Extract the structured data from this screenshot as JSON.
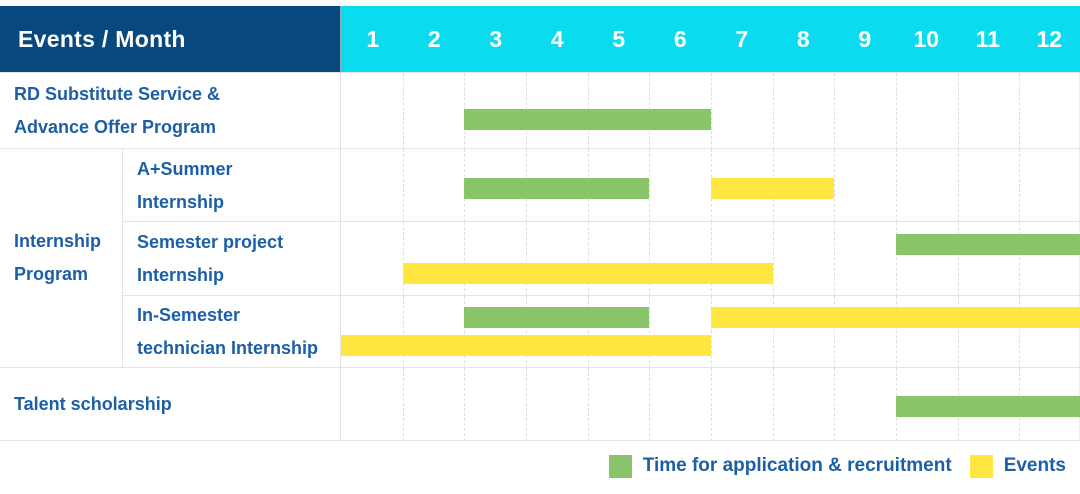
{
  "colors": {
    "navy": "#07497E",
    "cyan": "#0BDBEE",
    "green": "#8AC56B",
    "yellow": "#FFE640",
    "label_blue": "#1D5FA6"
  },
  "chart_data": {
    "type": "bar",
    "variant": "gantt-schedule-table",
    "corner_label": "Events / Month",
    "xlabel": "Month",
    "months": [
      "1",
      "2",
      "3",
      "4",
      "5",
      "6",
      "7",
      "8",
      "9",
      "10",
      "11",
      "12"
    ],
    "x_range": [
      1,
      12
    ],
    "grid": "dashed-vertical-month-lines",
    "legend_position": "bottom-right",
    "legend": [
      {
        "label": "Time for application & recruitment",
        "color": "green"
      },
      {
        "label": "Events",
        "color": "yellow"
      }
    ],
    "group_label": {
      "lines": [
        "Internship",
        "Program"
      ],
      "member_row_ids": [
        "a-summer-internship",
        "semester-project-internship",
        "in-semester-technician-internship"
      ]
    },
    "rows": [
      {
        "id": "rd-substitute-advance-offer",
        "label_lines": [
          "RD Substitute Service &",
          "Advance Offer Program"
        ],
        "in_group": false,
        "bars": [
          {
            "color": "green",
            "start_month": 3,
            "end_month": 6,
            "lane": "center"
          }
        ]
      },
      {
        "id": "a-summer-internship",
        "label_lines": [
          "A+Summer",
          "Internship"
        ],
        "in_group": true,
        "bars": [
          {
            "color": "green",
            "start_month": 3,
            "end_month": 5,
            "lane": "center"
          },
          {
            "color": "yellow",
            "start_month": 7,
            "end_month": 8,
            "lane": "center"
          }
        ]
      },
      {
        "id": "semester-project-internship",
        "label_lines": [
          "Semester project",
          "Internship"
        ],
        "in_group": true,
        "bars": [
          {
            "color": "green",
            "start_month": 10,
            "end_month": 12,
            "lane": "top"
          },
          {
            "color": "yellow",
            "start_month": 2,
            "end_month": 7,
            "lane": "bottom"
          }
        ]
      },
      {
        "id": "in-semester-technician-internship",
        "label_lines": [
          "In-Semester",
          "technician Internship"
        ],
        "in_group": true,
        "bars": [
          {
            "color": "green",
            "start_month": 3,
            "end_month": 5,
            "lane": "top"
          },
          {
            "color": "yellow",
            "start_month": 7,
            "end_month": 12,
            "lane": "top"
          },
          {
            "color": "yellow",
            "start_month": 1,
            "end_month": 6,
            "lane": "bottom"
          }
        ]
      },
      {
        "id": "talent-scholarship",
        "label_lines": [
          "Talent scholarship"
        ],
        "in_group": false,
        "bars": [
          {
            "color": "green",
            "start_month": 10,
            "end_month": 12,
            "lane": "center"
          }
        ]
      }
    ]
  }
}
